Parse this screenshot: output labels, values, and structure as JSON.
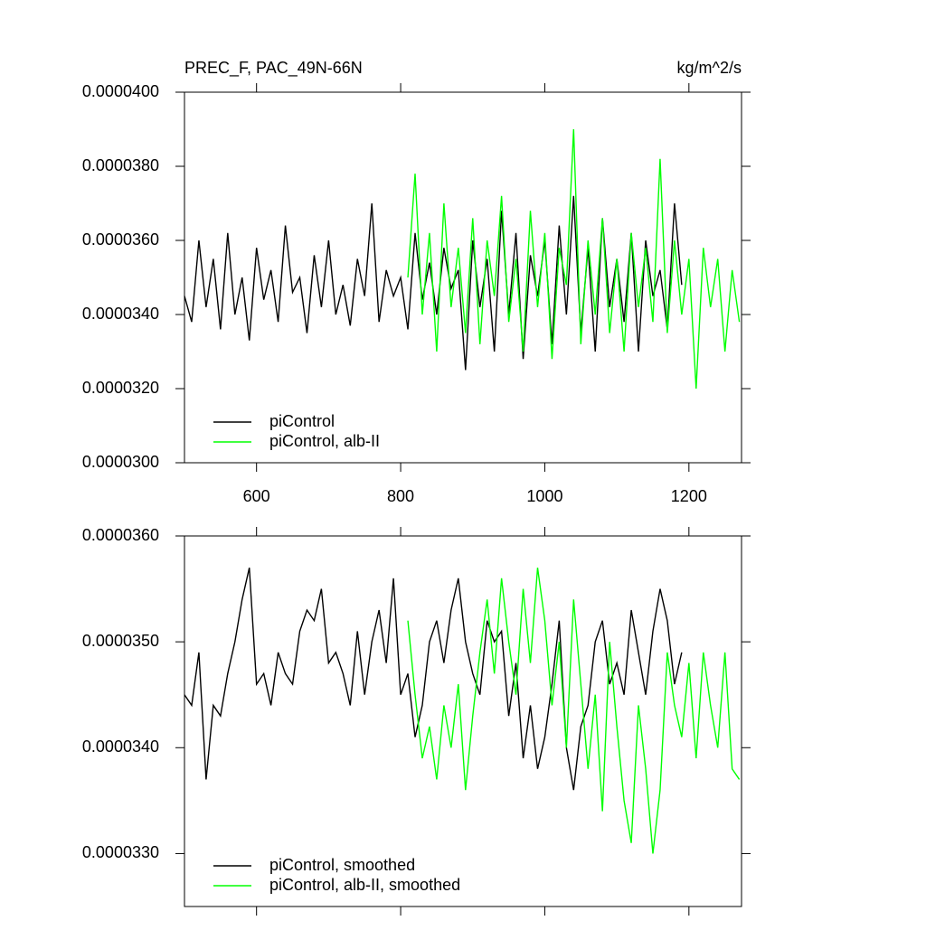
{
  "chart_data": [
    {
      "type": "line",
      "title": "PREC_F, PAC_49N-66N",
      "subtitle": "kg/m^2/s",
      "xlim": [
        500,
        1273
      ],
      "xticks": [
        600,
        800,
        1000,
        1200
      ],
      "xticklabels": true,
      "ylim": [
        3e-05,
        4e-05
      ],
      "yticks": [
        {
          "value": 3e-05,
          "label": "0.0000300"
        },
        {
          "value": 3.2e-05,
          "label": "0.0000320"
        },
        {
          "value": 3.4e-05,
          "label": "0.0000340"
        },
        {
          "value": 3.6e-05,
          "label": "0.0000360"
        },
        {
          "value": 3.8e-05,
          "label": "0.0000380"
        },
        {
          "value": 4e-05,
          "label": "0.0000400"
        }
      ],
      "legend": "lower left",
      "series": [
        {
          "name": "piControl",
          "color": "#000000",
          "x": [
            500,
            510,
            520,
            530,
            540,
            550,
            560,
            570,
            580,
            590,
            600,
            610,
            620,
            630,
            640,
            650,
            660,
            670,
            680,
            690,
            700,
            710,
            720,
            730,
            740,
            750,
            760,
            770,
            780,
            790,
            800,
            810,
            820,
            830,
            840,
            850,
            860,
            870,
            880,
            890,
            900,
            910,
            920,
            930,
            940,
            950,
            960,
            970,
            980,
            990,
            1000,
            1010,
            1020,
            1030,
            1040,
            1050,
            1060,
            1070,
            1080,
            1090,
            1100,
            1110,
            1120,
            1130,
            1140,
            1150,
            1160,
            1170,
            1180,
            1190
          ],
          "values": [
            3.45e-05,
            3.38e-05,
            3.6e-05,
            3.42e-05,
            3.55e-05,
            3.36e-05,
            3.62e-05,
            3.4e-05,
            3.5e-05,
            3.33e-05,
            3.58e-05,
            3.44e-05,
            3.52e-05,
            3.38e-05,
            3.64e-05,
            3.46e-05,
            3.5e-05,
            3.35e-05,
            3.56e-05,
            3.42e-05,
            3.6e-05,
            3.4e-05,
            3.48e-05,
            3.37e-05,
            3.55e-05,
            3.45e-05,
            3.7e-05,
            3.38e-05,
            3.52e-05,
            3.45e-05,
            3.5e-05,
            3.36e-05,
            3.62e-05,
            3.44e-05,
            3.54e-05,
            3.4e-05,
            3.58e-05,
            3.47e-05,
            3.52e-05,
            3.25e-05,
            3.6e-05,
            3.42e-05,
            3.55e-05,
            3.3e-05,
            3.68e-05,
            3.4e-05,
            3.62e-05,
            3.28e-05,
            3.56e-05,
            3.45e-05,
            3.6e-05,
            3.32e-05,
            3.64e-05,
            3.4e-05,
            3.72e-05,
            3.35e-05,
            3.58e-05,
            3.3e-05,
            3.66e-05,
            3.42e-05,
            3.55e-05,
            3.38e-05,
            3.62e-05,
            3.3e-05,
            3.6e-05,
            3.45e-05,
            3.52e-05,
            3.36e-05,
            3.7e-05,
            3.48e-05
          ]
        },
        {
          "name": "piControl, alb-II",
          "color": "#00ff00",
          "x": [
            810,
            820,
            830,
            840,
            850,
            860,
            870,
            880,
            890,
            900,
            910,
            920,
            930,
            940,
            950,
            960,
            970,
            980,
            990,
            1000,
            1010,
            1020,
            1030,
            1040,
            1050,
            1060,
            1070,
            1080,
            1090,
            1100,
            1110,
            1120,
            1130,
            1140,
            1150,
            1160,
            1170,
            1180,
            1190,
            1200,
            1210,
            1220,
            1230,
            1240,
            1250,
            1260,
            1270
          ],
          "values": [
            3.5e-05,
            3.78e-05,
            3.4e-05,
            3.62e-05,
            3.3e-05,
            3.7e-05,
            3.42e-05,
            3.58e-05,
            3.35e-05,
            3.66e-05,
            3.32e-05,
            3.6e-05,
            3.45e-05,
            3.72e-05,
            3.38e-05,
            3.55e-05,
            3.3e-05,
            3.68e-05,
            3.42e-05,
            3.62e-05,
            3.28e-05,
            3.58e-05,
            3.48e-05,
            3.9e-05,
            3.32e-05,
            3.6e-05,
            3.4e-05,
            3.66e-05,
            3.35e-05,
            3.55e-05,
            3.3e-05,
            3.62e-05,
            3.42e-05,
            3.58e-05,
            3.38e-05,
            3.82e-05,
            3.35e-05,
            3.6e-05,
            3.4e-05,
            3.55e-05,
            3.2e-05,
            3.58e-05,
            3.42e-05,
            3.55e-05,
            3.3e-05,
            3.52e-05,
            3.38e-05
          ]
        }
      ]
    },
    {
      "type": "line",
      "xlim": [
        500,
        1273
      ],
      "xticks": [
        600,
        800,
        1000,
        1200
      ],
      "xticklabels": false,
      "ylim": [
        3.25e-05,
        3.6e-05
      ],
      "yticks": [
        {
          "value": 3.3e-05,
          "label": "0.0000330"
        },
        {
          "value": 3.4e-05,
          "label": "0.0000340"
        },
        {
          "value": 3.5e-05,
          "label": "0.0000350"
        },
        {
          "value": 3.6e-05,
          "label": "0.0000360"
        }
      ],
      "legend": "lower left",
      "series": [
        {
          "name": "piControl, smoothed",
          "color": "#000000",
          "x": [
            500,
            510,
            520,
            530,
            540,
            550,
            560,
            570,
            580,
            590,
            600,
            610,
            620,
            630,
            640,
            650,
            660,
            670,
            680,
            690,
            700,
            710,
            720,
            730,
            740,
            750,
            760,
            770,
            780,
            790,
            800,
            810,
            820,
            830,
            840,
            850,
            860,
            870,
            880,
            890,
            900,
            910,
            920,
            930,
            940,
            950,
            960,
            970,
            980,
            990,
            1000,
            1010,
            1020,
            1030,
            1040,
            1050,
            1060,
            1070,
            1080,
            1090,
            1100,
            1110,
            1120,
            1130,
            1140,
            1150,
            1160,
            1170,
            1180,
            1190
          ],
          "values": [
            3.45e-05,
            3.44e-05,
            3.49e-05,
            3.37e-05,
            3.44e-05,
            3.43e-05,
            3.47e-05,
            3.5e-05,
            3.54e-05,
            3.57e-05,
            3.46e-05,
            3.47e-05,
            3.44e-05,
            3.49e-05,
            3.47e-05,
            3.46e-05,
            3.51e-05,
            3.53e-05,
            3.52e-05,
            3.55e-05,
            3.48e-05,
            3.49e-05,
            3.47e-05,
            3.44e-05,
            3.51e-05,
            3.45e-05,
            3.5e-05,
            3.53e-05,
            3.48e-05,
            3.56e-05,
            3.45e-05,
            3.47e-05,
            3.41e-05,
            3.44e-05,
            3.5e-05,
            3.52e-05,
            3.48e-05,
            3.53e-05,
            3.56e-05,
            3.5e-05,
            3.47e-05,
            3.45e-05,
            3.52e-05,
            3.5e-05,
            3.51e-05,
            3.43e-05,
            3.48e-05,
            3.39e-05,
            3.44e-05,
            3.38e-05,
            3.41e-05,
            3.46e-05,
            3.52e-05,
            3.4e-05,
            3.36e-05,
            3.42e-05,
            3.44e-05,
            3.5e-05,
            3.52e-05,
            3.46e-05,
            3.48e-05,
            3.45e-05,
            3.53e-05,
            3.49e-05,
            3.45e-05,
            3.51e-05,
            3.55e-05,
            3.52e-05,
            3.46e-05,
            3.49e-05
          ]
        },
        {
          "name": "piControl, alb-II, smoothed",
          "color": "#00ff00",
          "x": [
            810,
            820,
            830,
            840,
            850,
            860,
            870,
            880,
            890,
            900,
            910,
            920,
            930,
            940,
            950,
            960,
            970,
            980,
            990,
            1000,
            1010,
            1020,
            1030,
            1040,
            1050,
            1060,
            1070,
            1080,
            1090,
            1100,
            1110,
            1120,
            1130,
            1140,
            1150,
            1160,
            1170,
            1180,
            1190,
            1200,
            1210,
            1220,
            1230,
            1240,
            1250,
            1260,
            1270
          ],
          "values": [
            3.52e-05,
            3.45e-05,
            3.39e-05,
            3.42e-05,
            3.37e-05,
            3.44e-05,
            3.4e-05,
            3.46e-05,
            3.36e-05,
            3.43e-05,
            3.49e-05,
            3.54e-05,
            3.47e-05,
            3.56e-05,
            3.5e-05,
            3.45e-05,
            3.55e-05,
            3.48e-05,
            3.57e-05,
            3.52e-05,
            3.44e-05,
            3.5e-05,
            3.4e-05,
            3.54e-05,
            3.46e-05,
            3.38e-05,
            3.45e-05,
            3.34e-05,
            3.5e-05,
            3.42e-05,
            3.35e-05,
            3.31e-05,
            3.44e-05,
            3.38e-05,
            3.3e-05,
            3.36e-05,
            3.49e-05,
            3.44e-05,
            3.41e-05,
            3.48e-05,
            3.39e-05,
            3.49e-05,
            3.44e-05,
            3.4e-05,
            3.49e-05,
            3.38e-05,
            3.37e-05
          ]
        }
      ]
    }
  ]
}
